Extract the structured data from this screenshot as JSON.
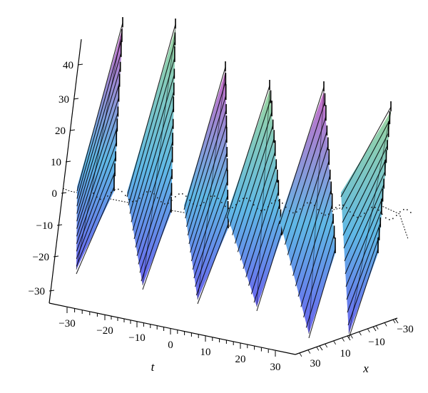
{
  "chart_data": {
    "type": "surface3d",
    "z_ticks": [
      "40",
      "30",
      "20",
      "10",
      "0",
      "−10",
      "−20",
      "−30"
    ],
    "t_ticks": [
      "−30",
      "−20",
      "−10",
      "0",
      "10",
      "20",
      "30"
    ],
    "x_ticks": [
      "−30",
      "−10",
      "10",
      "30"
    ],
    "t_label": "t",
    "x_label": "x",
    "t_range": [
      -35,
      35
    ],
    "x_range": [
      -35,
      35
    ],
    "z_range": [
      -33,
      47
    ],
    "num_waves": 6,
    "wave_peak_z": [
      47,
      45,
      42,
      39,
      37,
      34
    ],
    "wave_trough_z": [
      -24,
      -25,
      -27,
      -27,
      -29,
      -30
    ],
    "colors": {
      "gradient_low": "#6a64ee",
      "gradient_mid": "#5fb8e6",
      "gradient_high_green": "#9bd6a0",
      "gradient_high_magenta": "#c86ac8",
      "mesh_line": "#000000"
    }
  }
}
